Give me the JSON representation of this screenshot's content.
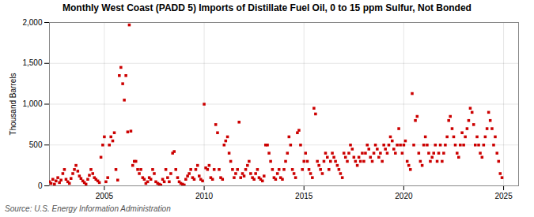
{
  "chart_data": {
    "type": "scatter",
    "title": "Monthly West Coast (PADD 5) Imports of Distillate Fuel Oil, 0 to 15 ppm Sulfur, Not Bonded",
    "ylabel": "Thousand Barrels",
    "source": "Source: U.S. Energy Information Administration",
    "color": "#cc0000",
    "marker": "square",
    "grid": true,
    "xlim": [
      2002.25,
      2025.75
    ],
    "xticks": [
      2005,
      2010,
      2015,
      2020,
      2025
    ],
    "ylim": [
      0,
      2000
    ],
    "yticks": [
      0,
      500,
      {
        "value": 1000,
        "label": "1,000"
      },
      {
        "value": 1500,
        "label": "1,500"
      },
      {
        "value": 2000,
        "label": "2,000"
      }
    ],
    "x": [
      2002.25,
      2002.33,
      2002.42,
      2002.5,
      2002.58,
      2002.67,
      2002.75,
      2002.83,
      2002.92,
      2003.0,
      2003.08,
      2003.17,
      2003.25,
      2003.33,
      2003.42,
      2003.5,
      2003.58,
      2003.67,
      2003.75,
      2003.83,
      2003.92,
      2004.0,
      2004.08,
      2004.17,
      2004.25,
      2004.33,
      2004.42,
      2004.5,
      2004.58,
      2004.67,
      2004.75,
      2004.83,
      2004.92,
      2005.0,
      2005.08,
      2005.17,
      2005.25,
      2005.33,
      2005.42,
      2005.5,
      2005.58,
      2005.67,
      2005.75,
      2005.83,
      2005.92,
      2006.0,
      2006.08,
      2006.17,
      2006.25,
      2006.33,
      2006.42,
      2006.5,
      2006.58,
      2006.67,
      2006.75,
      2006.83,
      2006.92,
      2007.0,
      2007.08,
      2007.17,
      2007.25,
      2007.33,
      2007.42,
      2007.5,
      2007.58,
      2007.67,
      2007.75,
      2007.83,
      2007.92,
      2008.0,
      2008.08,
      2008.17,
      2008.25,
      2008.33,
      2008.42,
      2008.5,
      2008.58,
      2008.67,
      2008.75,
      2008.83,
      2008.92,
      2009.0,
      2009.08,
      2009.17,
      2009.25,
      2009.33,
      2009.42,
      2009.5,
      2009.58,
      2009.67,
      2009.75,
      2009.83,
      2009.92,
      2010.0,
      2010.08,
      2010.17,
      2010.25,
      2010.33,
      2010.42,
      2010.5,
      2010.58,
      2010.67,
      2010.75,
      2010.83,
      2010.92,
      2011.0,
      2011.08,
      2011.17,
      2011.25,
      2011.33,
      2011.42,
      2011.5,
      2011.58,
      2011.67,
      2011.75,
      2011.83,
      2011.92,
      2012.0,
      2012.08,
      2012.17,
      2012.25,
      2012.33,
      2012.42,
      2012.5,
      2012.58,
      2012.67,
      2012.75,
      2012.83,
      2012.92,
      2013.0,
      2013.08,
      2013.17,
      2013.25,
      2013.33,
      2013.42,
      2013.5,
      2013.58,
      2013.67,
      2013.75,
      2013.83,
      2013.92,
      2014.0,
      2014.08,
      2014.17,
      2014.25,
      2014.33,
      2014.42,
      2014.5,
      2014.58,
      2014.67,
      2014.75,
      2014.83,
      2014.92,
      2015.0,
      2015.08,
      2015.17,
      2015.25,
      2015.33,
      2015.42,
      2015.5,
      2015.58,
      2015.67,
      2015.75,
      2015.83,
      2015.92,
      2016.0,
      2016.08,
      2016.17,
      2016.25,
      2016.33,
      2016.42,
      2016.5,
      2016.58,
      2016.67,
      2016.75,
      2016.83,
      2016.92,
      2017.0,
      2017.08,
      2017.17,
      2017.25,
      2017.33,
      2017.42,
      2017.5,
      2017.58,
      2017.67,
      2017.75,
      2017.83,
      2017.92,
      2018.0,
      2018.08,
      2018.17,
      2018.25,
      2018.33,
      2018.42,
      2018.5,
      2018.58,
      2018.67,
      2018.75,
      2018.83,
      2018.92,
      2019.0,
      2019.08,
      2019.17,
      2019.25,
      2019.33,
      2019.42,
      2019.5,
      2019.58,
      2019.67,
      2019.75,
      2019.83,
      2019.92,
      2020.0,
      2020.08,
      2020.17,
      2020.25,
      2020.33,
      2020.42,
      2020.5,
      2020.58,
      2020.67,
      2020.75,
      2020.83,
      2020.92,
      2021.0,
      2021.08,
      2021.17,
      2021.25,
      2021.33,
      2021.42,
      2021.5,
      2021.58,
      2021.67,
      2021.75,
      2021.83,
      2021.92,
      2022.0,
      2022.08,
      2022.17,
      2022.25,
      2022.33,
      2022.42,
      2022.5,
      2022.58,
      2022.67,
      2022.75,
      2022.83,
      2022.92,
      2023.0,
      2023.08,
      2023.17,
      2023.25,
      2023.33,
      2023.42,
      2023.5,
      2023.58,
      2023.67,
      2023.75,
      2023.83,
      2023.92,
      2024.0,
      2024.08,
      2024.17,
      2024.25,
      2024.33,
      2024.42,
      2024.5,
      2024.58,
      2024.67,
      2024.75,
      2024.83,
      2024.92
    ],
    "values": [
      50,
      30,
      80,
      20,
      60,
      100,
      40,
      70,
      150,
      200,
      80,
      50,
      30,
      90,
      150,
      200,
      250,
      180,
      120,
      90,
      60,
      40,
      20,
      80,
      130,
      200,
      150,
      100,
      80,
      60,
      40,
      350,
      500,
      600,
      50,
      100,
      500,
      600,
      550,
      650,
      200,
      70,
      1350,
      1450,
      1250,
      1050,
      1350,
      660,
      1970,
      670,
      250,
      300,
      300,
      200,
      150,
      200,
      100,
      80,
      30,
      50,
      100,
      80,
      200,
      150,
      50,
      30,
      20,
      10,
      80,
      50,
      200,
      100,
      50,
      150,
      400,
      420,
      200,
      100,
      50,
      30,
      20,
      10,
      80,
      120,
      150,
      200,
      100,
      80,
      200,
      250,
      120,
      80,
      60,
      1000,
      220,
      200,
      250,
      100,
      80,
      200,
      750,
      650,
      200,
      100,
      80,
      500,
      550,
      600,
      400,
      300,
      200,
      100,
      150,
      200,
      780,
      100,
      150,
      120,
      200,
      250,
      300,
      150,
      100,
      80,
      150,
      200,
      100,
      80,
      60,
      120,
      500,
      500,
      400,
      300,
      200,
      100,
      80,
      150,
      200,
      100,
      80,
      200,
      300,
      400,
      600,
      500,
      200,
      150,
      100,
      650,
      680,
      500,
      200,
      300,
      400,
      300,
      200,
      150,
      100,
      950,
      880,
      300,
      250,
      200,
      150,
      300,
      400,
      350,
      200,
      300,
      400,
      350,
      300,
      250,
      200,
      150,
      100,
      400,
      350,
      300,
      400,
      500,
      450,
      350,
      300,
      250,
      350,
      300,
      400,
      300,
      400,
      500,
      450,
      350,
      300,
      400,
      500,
      450,
      350,
      400,
      300,
      500,
      450,
      400,
      500,
      600,
      550,
      450,
      400,
      500,
      700,
      500,
      400,
      500,
      550,
      300,
      250,
      200,
      1130,
      500,
      800,
      850,
      400,
      300,
      250,
      500,
      600,
      500,
      400,
      300,
      350,
      400,
      500,
      300,
      400,
      500,
      300,
      400,
      500,
      600,
      800,
      850,
      700,
      600,
      500,
      400,
      350,
      500,
      650,
      500,
      600,
      700,
      800,
      950,
      900,
      750,
      500,
      600,
      500,
      400,
      350,
      500,
      600,
      700,
      900,
      800,
      700,
      500,
      600,
      400,
      300,
      150,
      100
    ]
  }
}
